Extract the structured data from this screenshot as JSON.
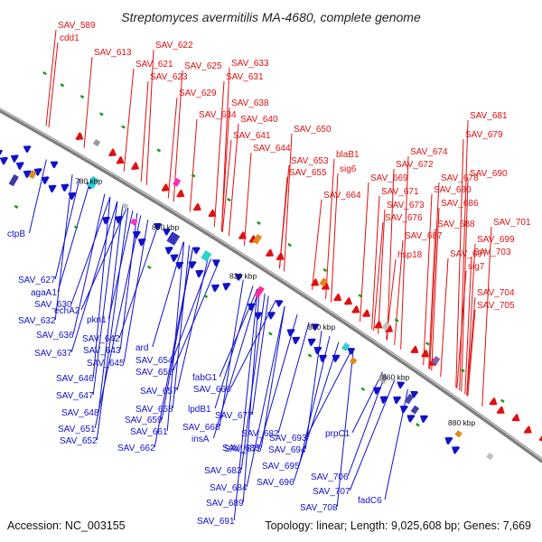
{
  "title": "Streptomyces avermitilis MA-4680, complete genome",
  "footer": {
    "accession": "Accession: NC_003155",
    "summary": "Topology: linear; Length: 9,025,608 bp; Genes: 7,669"
  },
  "ticks": [
    "780 kbp",
    "800 kbp",
    "820 kbp",
    "840 kbp",
    "860 kbp",
    "880 kbp"
  ],
  "forward_labels": [
    "SAV_589",
    "cdd1",
    "SAV_613",
    "SAV_622",
    "SAV_621",
    "SAV_625",
    "SAV_633",
    "SAV_623",
    "SAV_631",
    "SAV_629",
    "SAV_638",
    "SAV_634",
    "SAV_640",
    "SAV_641",
    "SAV_650",
    "SAV_644",
    "SAV_653",
    "blaB1",
    "SAV_655",
    "sig6",
    "SAV_664",
    "SAV_669",
    "SAV_671",
    "SAV_673",
    "SAV_676",
    "SAV_687",
    "SAV_674",
    "SAV_672",
    "SAV_678",
    "SAV_680",
    "SAV_686",
    "SAV_688",
    "hsp18",
    "SAV_681",
    "SAV_679",
    "SAV_690",
    "SAV_701",
    "SAV_699",
    "SAV_697",
    "SAV_703",
    "sig7",
    "SAV_704",
    "SAV_705"
  ],
  "reverse_labels": [
    "ctpB",
    "SAV_627",
    "agaA1",
    "SAV_630",
    "echA2",
    "SAV_632",
    "pkn1",
    "SAV_636",
    "SAV_642",
    "SAV_637",
    "SAV_643",
    "SAV_645",
    "ard",
    "SAV_654",
    "SAV_656",
    "SAV_646",
    "SAV_647",
    "SAV_657",
    "fabG1",
    "SAV_666",
    "SAV_658",
    "SAV_648",
    "SAV_659",
    "lpdB1",
    "SAV_651",
    "SAV_661",
    "SAV_668",
    "SAV_652",
    "SAV_662",
    "insA",
    "SAV_677",
    "SAV_675",
    "SAV_682",
    "SAV_685",
    "SAV_693",
    "SAV_694",
    "SAV_683",
    "SAV_695",
    "SAV_684",
    "SAV_696",
    "SAV_689",
    "SAV_691",
    "prpC1",
    "SAV_706",
    "SAV_707",
    "SAV_708",
    "fadC6"
  ],
  "colors": {
    "forward": "#e01010",
    "reverse": "#1010cc",
    "backbone": "#888888",
    "rna": "#1a9a1a"
  }
}
